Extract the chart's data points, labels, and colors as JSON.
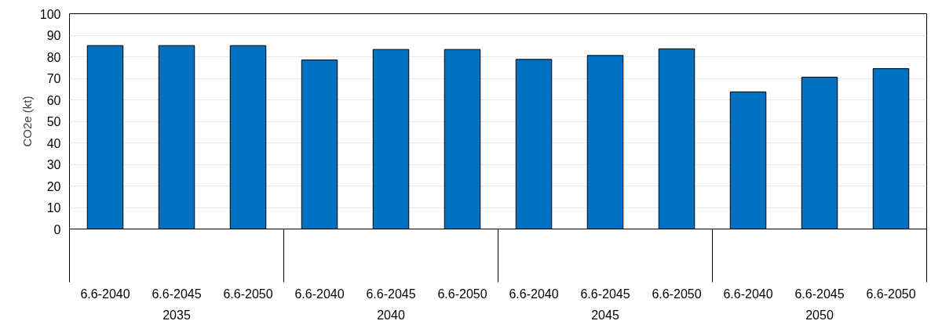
{
  "chart_data": {
    "type": "bar",
    "ylabel": "CO2e (kt)",
    "categories": [
      "6.6-2040",
      "6.6-2045",
      "6.6-2050",
      "6.6-2040",
      "6.6-2045",
      "6.6-2050",
      "6.6-2040",
      "6.6-2045",
      "6.6-2050",
      "6.6-2040",
      "6.6-2045",
      "6.6-2050"
    ],
    "values": [
      85.2,
      85.2,
      85.2,
      78.5,
      83.4,
      83.4,
      78.8,
      80.6,
      83.7,
      63.7,
      70.5,
      74.5
    ],
    "color": "#0070c0",
    "annotations": [
      "2035",
      "2040",
      "2045",
      "2050"
    ],
    "ylim": [
      0,
      100
    ],
    "yticks": [
      0,
      10,
      20,
      30,
      40,
      50,
      60,
      70,
      80,
      90,
      100
    ],
    "grid": "y"
  }
}
